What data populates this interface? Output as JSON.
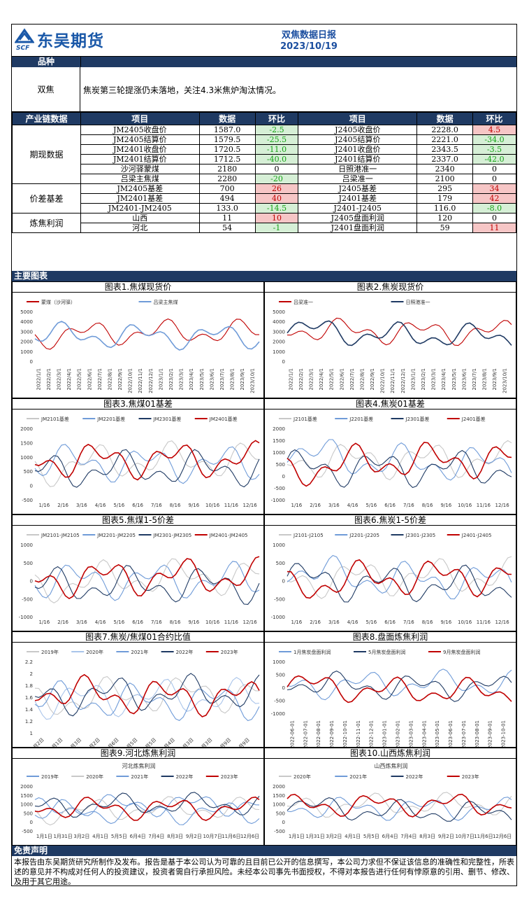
{
  "header": {
    "company": "东吴期货",
    "abbr": "SCF",
    "report_title": "双焦数据日报",
    "date": "2023/10/19"
  },
  "variety": {
    "header": "品种",
    "name": "双焦",
    "comment": "焦炭第三轮提涨仍未落地，关注4.3米焦炉淘汰情况。"
  },
  "table": {
    "section_header": "产业链数据",
    "columns": [
      "项目",
      "数据",
      "环比",
      "项目",
      "数据",
      "环比"
    ],
    "groups": [
      {
        "name": "期现数据",
        "rows": [
          [
            "JM2405收盘价",
            "1587.0",
            "-2.5",
            "J2405收盘价",
            "2228.0",
            "4.5"
          ],
          [
            "JM2405结算价",
            "1579.5",
            "-25.5",
            "J2405结算价",
            "2221.0",
            "-34.0"
          ],
          [
            "JM2401收盘价",
            "1720.5",
            "-11.0",
            "J2401收盘价",
            "2343.5",
            "-3.5"
          ],
          [
            "JM2401结算价",
            "1712.5",
            "-40.0",
            "J2401结算价",
            "2337.0",
            "-42.0"
          ],
          [
            "沙河驿蒙煤",
            "2180",
            "0",
            "日照港准一",
            "2340",
            "0"
          ],
          [
            "吕梁主焦煤",
            "2280",
            "-20",
            "吕梁准一",
            "2100",
            "0"
          ]
        ]
      },
      {
        "name": "价差基差",
        "rows": [
          [
            "JM2405基差",
            "700",
            "26",
            "J2405基差",
            "295",
            "34"
          ],
          [
            "JM2401基差",
            "494",
            "40",
            "J2401基差",
            "179",
            "42"
          ],
          [
            "JM2401-JM2405",
            "133.0",
            "-14.5",
            "J2401-J2405",
            "116.0",
            "-8.0"
          ]
        ]
      },
      {
        "name": "炼焦利润",
        "rows": [
          [
            "山西",
            "11",
            "10",
            "J2405盘面利润",
            "120",
            "0"
          ],
          [
            "河北",
            "54",
            "-1",
            "J2401盘面利润",
            "59",
            "11"
          ]
        ]
      }
    ]
  },
  "charts_header": "主要图表",
  "charts": [
    {
      "title": "图表1.焦煤现货价",
      "legend": [
        "蒙煤（沙河驿）",
        "吕梁主焦煤"
      ],
      "colors": [
        "#c00000",
        "#6f9bd8"
      ],
      "yticks": [
        "5000",
        "4000",
        "3000",
        "2000",
        "1000",
        "0"
      ],
      "xticks": [
        "2022/1/1",
        "2022/2/1",
        "2022/3/1",
        "2022/4/1",
        "2022/5/1",
        "2022/6/1",
        "2022/7/1",
        "2022/8/1",
        "2022/9/1",
        "2022/10/1",
        "2022/11/1",
        "2022/12/1",
        "2023/1/1",
        "2023/2/1",
        "2023/3/1",
        "2023/4/1",
        "2023/5/1",
        "2023/6/1",
        "2023/7/1",
        "2023/8/1",
        "2023/9/1",
        "2023/10/1"
      ]
    },
    {
      "title": "图表2.焦炭现货价",
      "legend": [
        "吕梁准一",
        "日照港准一"
      ],
      "colors": [
        "#c00000",
        "#1f3a63"
      ],
      "yticks": [
        "5000",
        "4000",
        "3000",
        "2000",
        "1000",
        "0"
      ],
      "xticks": [
        "2022/1/1",
        "2022/2/1",
        "2022/3/1",
        "2022/4/1",
        "2022/5/1",
        "2022/6/1",
        "2022/7/1",
        "2022/8/1",
        "2022/9/1",
        "2022/10/1",
        "2022/11/1",
        "2022/12/1",
        "2023/1/1",
        "2023/2/1",
        "2023/3/1",
        "2023/4/1",
        "2023/5/1",
        "2023/6/1",
        "2023/7/1",
        "2023/8/1",
        "2023/9/1",
        "2023/10/1"
      ]
    },
    {
      "title": "图表3.焦煤01基差",
      "legend": [
        "JM2101基差",
        "JM2201基差",
        "JM2301基差",
        "JM2401基差"
      ],
      "colors": [
        "#c8c8c8",
        "#6f9bd8",
        "#1f3a63",
        "#c00000"
      ],
      "yticks": [
        "2000",
        "1500",
        "1000",
        "500",
        "0",
        "-500"
      ],
      "xticks": [
        "1/16",
        "2/16",
        "3/16",
        "4/16",
        "5/16",
        "6/16",
        "7/16",
        "8/16",
        "9/16",
        "10/16",
        "11/16",
        "12/16"
      ]
    },
    {
      "title": "图表4.焦炭01基差",
      "legend": [
        "J2101基差",
        "J2201基差",
        "J2301基差",
        "J2401基差"
      ],
      "colors": [
        "#c8c8c8",
        "#6f9bd8",
        "#1f3a63",
        "#c00000"
      ],
      "yticks": [
        "2000",
        "1500",
        "1000",
        "500",
        "0",
        "-500",
        "-1000"
      ],
      "xticks": [
        "1/16",
        "2/16",
        "3/16",
        "4/16",
        "5/16",
        "6/16",
        "7/16",
        "8/16",
        "9/16",
        "10/16",
        "11/16",
        "12/16"
      ]
    },
    {
      "title": "图表5.焦煤1-5价差",
      "legend": [
        "JM2101-JM2105",
        "JM2201-JM2205",
        "JM2301-JM2305",
        "JM2401-JM2405"
      ],
      "colors": [
        "#c8c8c8",
        "#6f9bd8",
        "#1f3a63",
        "#c00000"
      ],
      "yticks": [
        "1000",
        "500",
        "0",
        "-500",
        "-1000"
      ],
      "xticks": [
        "1/16",
        "2/16",
        "3/16",
        "4/16",
        "5/16",
        "6/16",
        "7/16",
        "8/16",
        "9/16",
        "10/16",
        "11/16",
        "12/16"
      ]
    },
    {
      "title": "图表6.焦炭1-5价差",
      "legend": [
        "J2101-J2105",
        "J2201-J2205",
        "J2301-J2305",
        "J2401-J2405"
      ],
      "colors": [
        "#c8c8c8",
        "#6f9bd8",
        "#1f3a63",
        "#c00000"
      ],
      "yticks": [
        "1000",
        "500",
        "0",
        "-500",
        "-1000"
      ],
      "xticks": [
        "1/16",
        "2/16",
        "3/16",
        "4/16",
        "5/16",
        "6/16",
        "7/16",
        "8/16",
        "9/16",
        "10/16",
        "11/16",
        "12/16"
      ]
    },
    {
      "title": "图表7.焦炭/焦煤01合约比值",
      "legend": [
        "2019年",
        "2020年",
        "2021年",
        "2022年",
        "2023年"
      ],
      "colors": [
        "#c8c8c8",
        "#a9c4ea",
        "#6f9bd8",
        "#1f3a63",
        "#c00000"
      ],
      "yticks": [
        "2.2",
        "2",
        "1.8",
        "1.6",
        "1.4",
        "1.2",
        "1"
      ],
      "xticks": [
        "1月2日",
        "2月1日",
        "3月3日",
        "4月2日",
        "5月6日",
        "6月5日",
        "7月5日",
        "8月4日",
        "9月3日",
        "10月3日",
        "11月9日",
        "12月9日"
      ]
    },
    {
      "title": "图表8.盘面炼焦利润",
      "legend": [
        "1月焦炭盘面利润",
        "5月焦炭盘面利润",
        "9月焦炭盘面利润"
      ],
      "colors": [
        "#6f9bd8",
        "#1f3a63",
        "#c00000"
      ],
      "yticks": [
        "1000",
        "500",
        "0",
        "-500",
        "-1000"
      ],
      "xticks": [
        "2022-06-01",
        "2022-07-01",
        "2022-08-01",
        "2022-09-01",
        "2022-10-01",
        "2022-11-01",
        "2022-12-01",
        "2023-01-01",
        "2023-02-01",
        "2023-03-01",
        "2023-04-01",
        "2023-05-01",
        "2023-06-01",
        "2023-07-01",
        "2023-08-01",
        "2023-09-01",
        "2023-10-01"
      ]
    },
    {
      "title": "图表9.河北炼焦利润",
      "subtitle": "河北炼焦利润",
      "legend": [
        "2019年",
        "2020年",
        "2021年",
        "2022年",
        "2023年"
      ],
      "colors": [
        "#6f9bd8",
        "#c8c8c8",
        "#6f9bd8",
        "#1f3a63",
        "#c00000"
      ],
      "yticks": [
        "2000",
        "1500",
        "1000",
        "500",
        "0",
        "-500"
      ],
      "xticks": [
        "1月1日",
        "1月31日",
        "3月2日",
        "4月1日",
        "5月5日",
        "6月4日",
        "7月4日",
        "8月3日",
        "9月2日",
        "10月7日",
        "11月6日",
        "12月6日"
      ]
    },
    {
      "title": "图表10.山西炼焦利润",
      "subtitle": "山西炼焦利润",
      "legend": [
        "2020年",
        "2021年",
        "2022年",
        "2023年"
      ],
      "colors": [
        "#c8c8c8",
        "#6f9bd8",
        "#1f3a63",
        "#c00000"
      ],
      "yticks": [
        "2000",
        "1500",
        "1000",
        "500",
        "0",
        "-500"
      ],
      "xticks": [
        "1月1日",
        "1月31日",
        "3月2日",
        "4月1日",
        "5月5日",
        "6月4日",
        "7月4日",
        "8月3日",
        "9月2日",
        "10月7日",
        "11月6日",
        "12月6日"
      ]
    }
  ],
  "disclaimer": {
    "header": "免责声明",
    "text": "本报告由东吴期货研究所制作及发布。报告是基于本公司认为可靠的且目前已公开的信息撰写，本公司力求但不保证该信息的准确性和完整性，所表述的意见并不构成对任何人的投资建议，投资者需自行承担风险。未经本公司事先书面授权，不得对本报告进行任何有悖原意的引用、删节、修改、及用于其它用途。"
  }
}
